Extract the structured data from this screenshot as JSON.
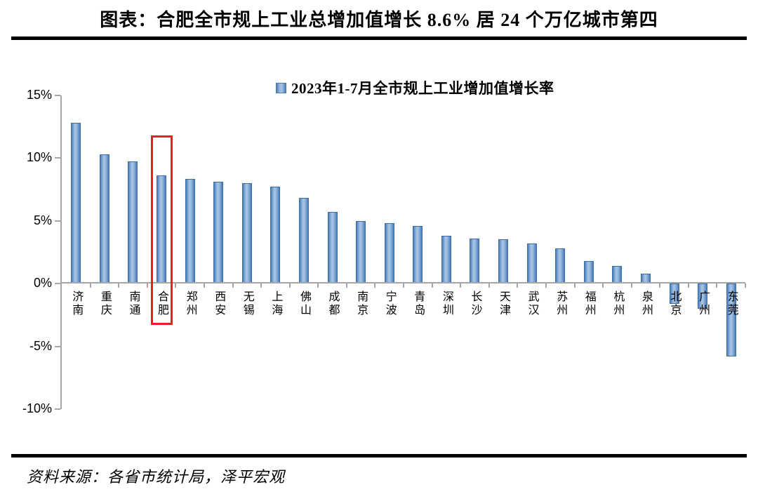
{
  "title": "图表：合肥全市规上工业总增加值增长 8.6% 居 24 个万亿城市第四",
  "source": "资料来源：各省市统计局，泽平宏观",
  "chart_data": {
    "type": "bar",
    "legend": "2023年1-7月全市规上工业增加值增长率",
    "legend_position": "top-center",
    "categories": [
      "济南",
      "重庆",
      "南通",
      "合肥",
      "郑州",
      "西安",
      "无锡",
      "上海",
      "佛山",
      "成都",
      "南京",
      "宁波",
      "青岛",
      "深圳",
      "长沙",
      "天津",
      "武汉",
      "苏州",
      "福州",
      "杭州",
      "泉州",
      "北京",
      "广州",
      "东莞"
    ],
    "values": [
      12.8,
      10.3,
      9.7,
      8.6,
      8.3,
      8.1,
      8.0,
      7.7,
      6.8,
      5.7,
      5.0,
      4.8,
      4.6,
      3.8,
      3.6,
      3.5,
      3.2,
      2.8,
      1.8,
      1.4,
      0.8,
      -1.6,
      -2.0,
      -5.8
    ],
    "xlabel": "",
    "ylabel": "",
    "ylim": [
      -10,
      15
    ],
    "yticks": [
      {
        "v": 15,
        "label": "15%"
      },
      {
        "v": 10,
        "label": "10%"
      },
      {
        "v": 5,
        "label": "5%"
      },
      {
        "v": 0,
        "label": "0%"
      },
      {
        "v": -5,
        "label": "-5%"
      },
      {
        "v": -10,
        "label": "-10%"
      }
    ],
    "grid": false,
    "highlight": {
      "category": "合肥",
      "value": 8.6,
      "style": "red-outline-box"
    },
    "colors": {
      "bar_fill": "#8fb2da",
      "bar_edge": "#4a7cb8",
      "axis": "#a6a6a6",
      "highlight": "#ee1c25",
      "text": "#000000"
    }
  }
}
